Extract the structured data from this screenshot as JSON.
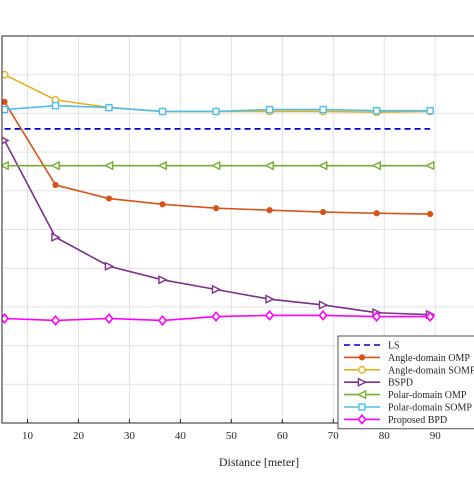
{
  "chart_data": {
    "type": "line",
    "title": "",
    "xlabel": "Distance [meter]",
    "ylabel": "",
    "xlim": [
      5,
      98
    ],
    "ylim": [
      0,
      10
    ],
    "grid": true,
    "legend_position": "bottom-right",
    "xticks": [
      10,
      20,
      30,
      40,
      50,
      60,
      70,
      80,
      90
    ],
    "x": [
      5.5,
      15.5,
      26,
      36.5,
      47,
      57.5,
      68,
      78.5,
      89
    ],
    "series": [
      {
        "name": "LS",
        "color": "#0000cc",
        "dash": "dashed",
        "marker": "none",
        "values": [
          7.6,
          7.6,
          7.6,
          7.6,
          7.6,
          7.6,
          7.6,
          7.6,
          7.6
        ]
      },
      {
        "name": "Angle-domain OMP",
        "color": "#d95319",
        "marker": "dot",
        "values": [
          8.3,
          6.15,
          5.8,
          5.65,
          5.55,
          5.5,
          5.45,
          5.42,
          5.4
        ]
      },
      {
        "name": "Angle-domain SOMP",
        "color": "#e5b020",
        "marker": "circle",
        "values": [
          9.0,
          8.35,
          8.15,
          8.05,
          8.05,
          8.05,
          8.05,
          8.03,
          8.05
        ]
      },
      {
        "name": "BSPD",
        "color": "#7e2f8e",
        "marker": "triangle-right",
        "values": [
          7.3,
          4.8,
          4.05,
          3.7,
          3.45,
          3.2,
          3.05,
          2.85,
          2.8
        ]
      },
      {
        "name": "Polar-domain OMP",
        "color": "#77ac30",
        "marker": "triangle-left",
        "values": [
          6.65,
          6.65,
          6.65,
          6.65,
          6.65,
          6.65,
          6.65,
          6.65,
          6.65
        ]
      },
      {
        "name": "Polar-domain SOMP",
        "color": "#4dbeee",
        "marker": "square",
        "values": [
          8.1,
          8.2,
          8.15,
          8.05,
          8.05,
          8.1,
          8.1,
          8.07,
          8.07
        ]
      },
      {
        "name": "Proposed BPD",
        "color": "#ff00ff",
        "marker": "diamond",
        "values": [
          2.7,
          2.65,
          2.7,
          2.65,
          2.75,
          2.78,
          2.78,
          2.75,
          2.75
        ]
      }
    ]
  }
}
